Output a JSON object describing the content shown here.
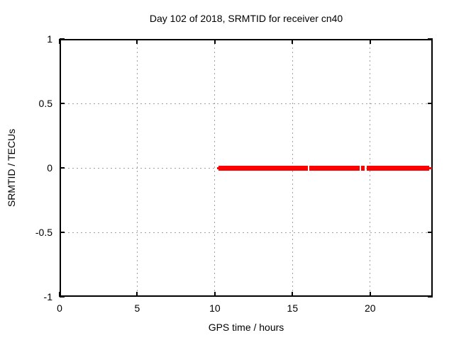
{
  "window": {
    "background": "#ffffff"
  },
  "chart_data": {
    "type": "line",
    "title": "Day 102 of 2018, SRMTID for receiver cn40",
    "xlabel": "GPS time / hours",
    "ylabel": "SRMTID / TECUs",
    "xlim": [
      0,
      24.03
    ],
    "ylim": [
      -1,
      1
    ],
    "xticks": [
      0,
      5,
      10,
      15,
      20
    ],
    "yticks": [
      1,
      0.5,
      0,
      -0.5,
      -1
    ],
    "grid": true,
    "grid_color": "#a0a0a0",
    "axis_color": "#000000",
    "legend": "none",
    "series": [
      {
        "name": "SRMTID",
        "color": "#ff0000",
        "y_value": 0,
        "line_segments_hours": [
          [
            10.24,
            15.97
          ],
          [
            16.06,
            19.32
          ],
          [
            19.41,
            19.66
          ],
          [
            19.77,
            23.82
          ]
        ],
        "thin_end_segments_hours": [
          [
            10.15,
            10.32
          ],
          [
            23.8,
            23.99
          ]
        ],
        "gaps_hours": [
          16.0,
          19.37,
          19.72
        ]
      }
    ]
  }
}
